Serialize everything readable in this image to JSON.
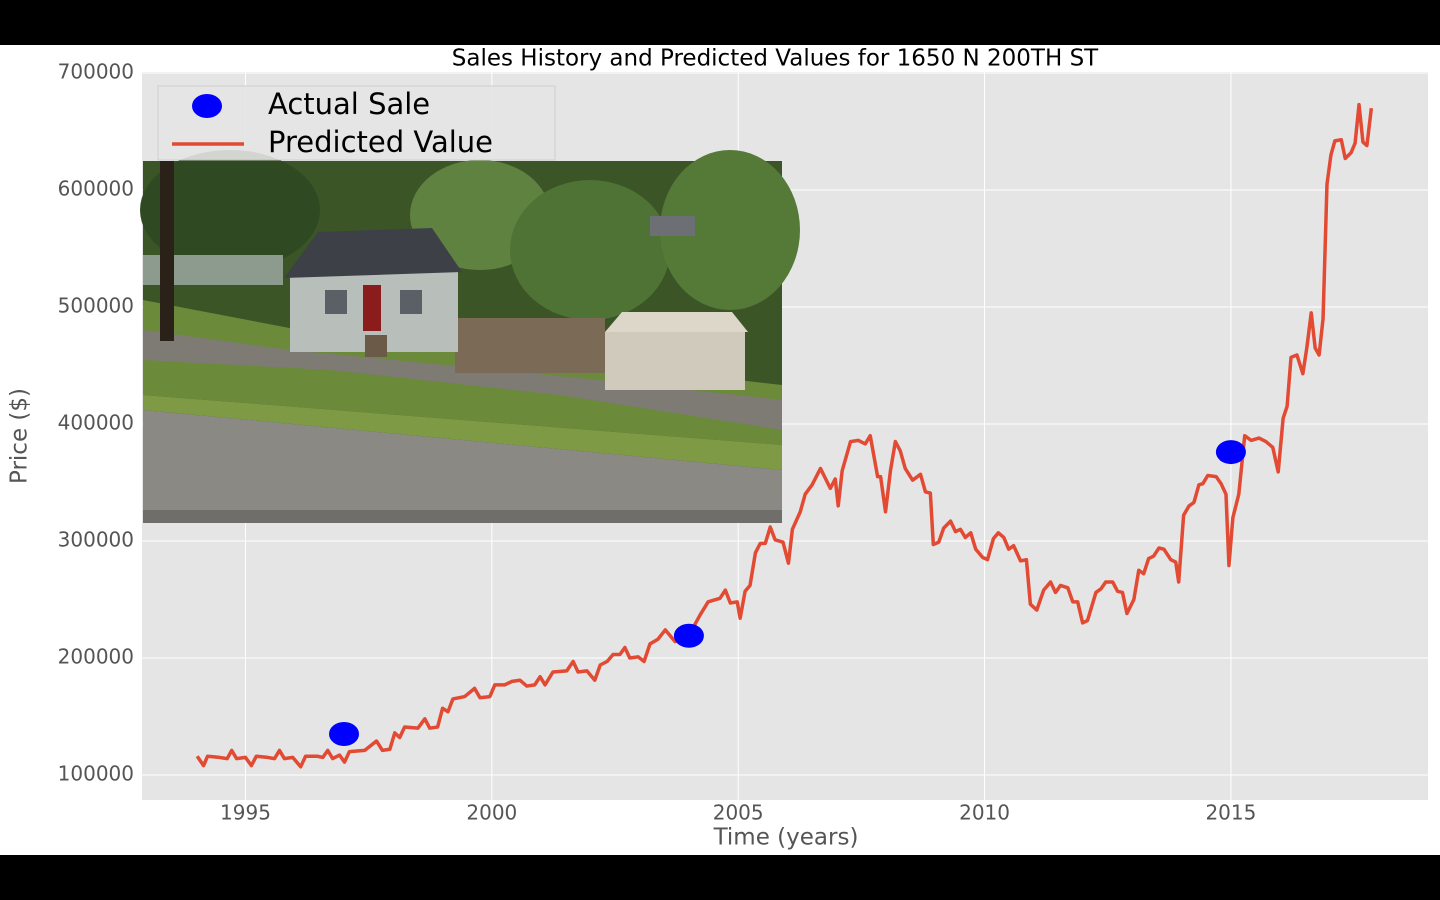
{
  "chart_data": {
    "type": "line",
    "title": "Sales History and Predicted Values for 1650  N 200TH ST",
    "x_label": "Time (years)",
    "y_label": "Price ($)",
    "xlim": [
      1992.9,
      2019.0
    ],
    "ylim": [
      78600,
      700900
    ],
    "xticks": [
      1995,
      2000,
      2005,
      2010,
      2015
    ],
    "yticks": [
      100000,
      200000,
      300000,
      400000,
      500000,
      600000,
      700000
    ],
    "grid": true,
    "legend": "upper left",
    "series": [
      {
        "name": "Actual Sale",
        "color": "#0000ff",
        "style": "marker",
        "x": [
          1997,
          2004,
          2015
        ],
        "values": [
          135000,
          219000,
          376000
        ]
      },
      {
        "name": "Predicted Value",
        "color": "#e24a33",
        "style": "line",
        "x": [
          1994.02,
          1994.15,
          1994.23,
          1994.47,
          1994.63,
          1994.72,
          1994.82,
          1995.0,
          1995.12,
          1995.22,
          1995.45,
          1995.59,
          1995.69,
          1995.79,
          1995.96,
          1996.12,
          1996.22,
          1996.46,
          1996.57,
          1996.67,
          1996.77,
          1996.91,
          1997.01,
          1997.11,
          1997.42,
          1997.66,
          1997.78,
          1997.93,
          1998.03,
          1998.13,
          1998.23,
          1998.5,
          1998.64,
          1998.74,
          1998.9,
          1999.0,
          1999.11,
          1999.21,
          1999.45,
          1999.65,
          1999.76,
          1999.96,
          2000.06,
          2000.26,
          2000.41,
          2000.57,
          2000.71,
          2000.87,
          2000.98,
          2001.08,
          2001.24,
          2001.52,
          2001.65,
          2001.75,
          2001.93,
          2002.09,
          2002.2,
          2002.34,
          2002.46,
          2002.6,
          2002.7,
          2002.8,
          2002.97,
          2003.09,
          2003.21,
          2003.37,
          2003.52,
          2003.72,
          2004.02,
          2004.23,
          2004.39,
          2004.63,
          2004.74,
          2004.84,
          2004.98,
          2005.04,
          2005.14,
          2005.24,
          2005.35,
          2005.45,
          2005.55,
          2005.65,
          2005.75,
          2005.91,
          2006.02,
          2006.1,
          2006.26,
          2006.36,
          2006.5,
          2006.67,
          2006.87,
          2006.97,
          2007.03,
          2007.11,
          2007.28,
          2007.44,
          2007.58,
          2007.68,
          2007.83,
          2007.89,
          2007.99,
          2008.09,
          2008.19,
          2008.29,
          2008.39,
          2008.54,
          2008.7,
          2008.8,
          2008.9,
          2008.96,
          2009.07,
          2009.17,
          2009.31,
          2009.41,
          2009.51,
          2009.61,
          2009.72,
          2009.82,
          2009.96,
          2010.06,
          2010.18,
          2010.28,
          2010.39,
          2010.49,
          2010.59,
          2010.73,
          2010.85,
          2010.93,
          2011.06,
          2011.2,
          2011.34,
          2011.44,
          2011.54,
          2011.69,
          2011.79,
          2011.89,
          2011.99,
          2012.09,
          2012.26,
          2012.36,
          2012.46,
          2012.6,
          2012.7,
          2012.8,
          2012.89,
          2013.03,
          2013.13,
          2013.23,
          2013.33,
          2013.43,
          2013.54,
          2013.64,
          2013.78,
          2013.88,
          2013.94,
          2014.04,
          2014.15,
          2014.25,
          2014.35,
          2014.43,
          2014.53,
          2014.7,
          2014.8,
          2014.9,
          2014.96,
          2015.04,
          2015.16,
          2015.28,
          2015.41,
          2015.57,
          2015.71,
          2015.85,
          2015.96,
          2016.06,
          2016.14,
          2016.22,
          2016.34,
          2016.46,
          2016.54,
          2016.63,
          2016.71,
          2016.79,
          2016.87,
          2016.95,
          2017.03,
          2017.11,
          2017.24,
          2017.32,
          2017.44,
          2017.52,
          2017.6,
          2017.68,
          2017.76,
          2017.85
        ],
        "values": [
          116000,
          108000,
          116000,
          115000,
          114000,
          121000,
          114000,
          115000,
          108000,
          116000,
          115000,
          114000,
          121000,
          114000,
          115000,
          107000,
          116000,
          116000,
          115000,
          121000,
          114000,
          117000,
          111000,
          120000,
          121000,
          129000,
          121000,
          122000,
          136000,
          132000,
          141000,
          140000,
          148000,
          140000,
          141000,
          157000,
          154000,
          165000,
          167000,
          174000,
          166000,
          167000,
          177000,
          177000,
          180000,
          181000,
          176000,
          177000,
          184000,
          177000,
          188000,
          189000,
          197000,
          188000,
          189000,
          181000,
          194000,
          197000,
          203000,
          203000,
          209000,
          200000,
          201000,
          197000,
          212000,
          216000,
          224000,
          214000,
          221000,
          237000,
          248000,
          251000,
          258000,
          247000,
          248000,
          234000,
          257000,
          262000,
          290000,
          298000,
          298000,
          312000,
          301000,
          299000,
          281000,
          310000,
          325000,
          340000,
          348000,
          362000,
          345000,
          353000,
          330000,
          360000,
          385000,
          386000,
          383000,
          390000,
          355000,
          355000,
          325000,
          360000,
          385000,
          377000,
          362000,
          352000,
          357000,
          342000,
          341000,
          297000,
          299000,
          311000,
          317000,
          308000,
          310000,
          303000,
          307000,
          293000,
          286000,
          284000,
          302000,
          307000,
          303000,
          293000,
          296000,
          283000,
          284000,
          246000,
          241000,
          258000,
          265000,
          256000,
          262000,
          260000,
          248000,
          248000,
          230000,
          232000,
          256000,
          259000,
          265000,
          265000,
          257000,
          256000,
          238000,
          250000,
          275000,
          272000,
          285000,
          287000,
          294000,
          293000,
          284000,
          282000,
          265000,
          322000,
          330000,
          333000,
          348000,
          349000,
          356000,
          355000,
          349000,
          340000,
          279000,
          320000,
          340000,
          390000,
          386000,
          388000,
          385000,
          380000,
          359000,
          405000,
          415000,
          457000,
          459000,
          443000,
          465000,
          495000,
          465000,
          459000,
          490000,
          605000,
          630000,
          642000,
          643000,
          627000,
          632000,
          640000,
          673000,
          641000,
          638000,
          670000
        ]
      }
    ]
  }
}
